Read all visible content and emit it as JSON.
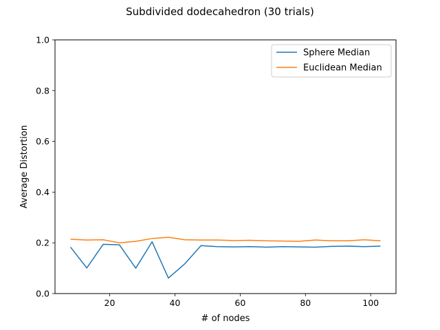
{
  "chart_data": {
    "type": "line",
    "title": "Subdivided dodecahedron (30 trials)",
    "xlabel": "# of nodes",
    "ylabel": "Average Distortion",
    "xlim": [
      3.25,
      107.75
    ],
    "ylim": [
      0.0,
      1.0
    ],
    "xticks": [
      20,
      40,
      60,
      80,
      100
    ],
    "yticks": [
      0.0,
      0.2,
      0.4,
      0.6,
      0.8,
      1.0
    ],
    "yticks_labels": [
      "0.0",
      "0.2",
      "0.4",
      "0.6",
      "0.8",
      "1.0"
    ],
    "grid": false,
    "legend_position": "top-right",
    "x": [
      8,
      13,
      18,
      23,
      28,
      33,
      38,
      43,
      48,
      53,
      58,
      63,
      68,
      73,
      78,
      83,
      88,
      93,
      98,
      103
    ],
    "series": [
      {
        "name": "Sphere Median",
        "color": "#1f77b4",
        "values": [
          0.183,
          0.101,
          0.194,
          0.192,
          0.1,
          0.204,
          0.061,
          0.117,
          0.189,
          0.185,
          0.184,
          0.185,
          0.183,
          0.185,
          0.184,
          0.183,
          0.186,
          0.187,
          0.185,
          0.187
        ]
      },
      {
        "name": "Euclidean Median",
        "color": "#ff7f0e",
        "values": [
          0.214,
          0.211,
          0.212,
          0.2,
          0.206,
          0.217,
          0.222,
          0.212,
          0.211,
          0.211,
          0.209,
          0.21,
          0.208,
          0.207,
          0.206,
          0.211,
          0.208,
          0.208,
          0.212,
          0.208
        ]
      }
    ]
  }
}
